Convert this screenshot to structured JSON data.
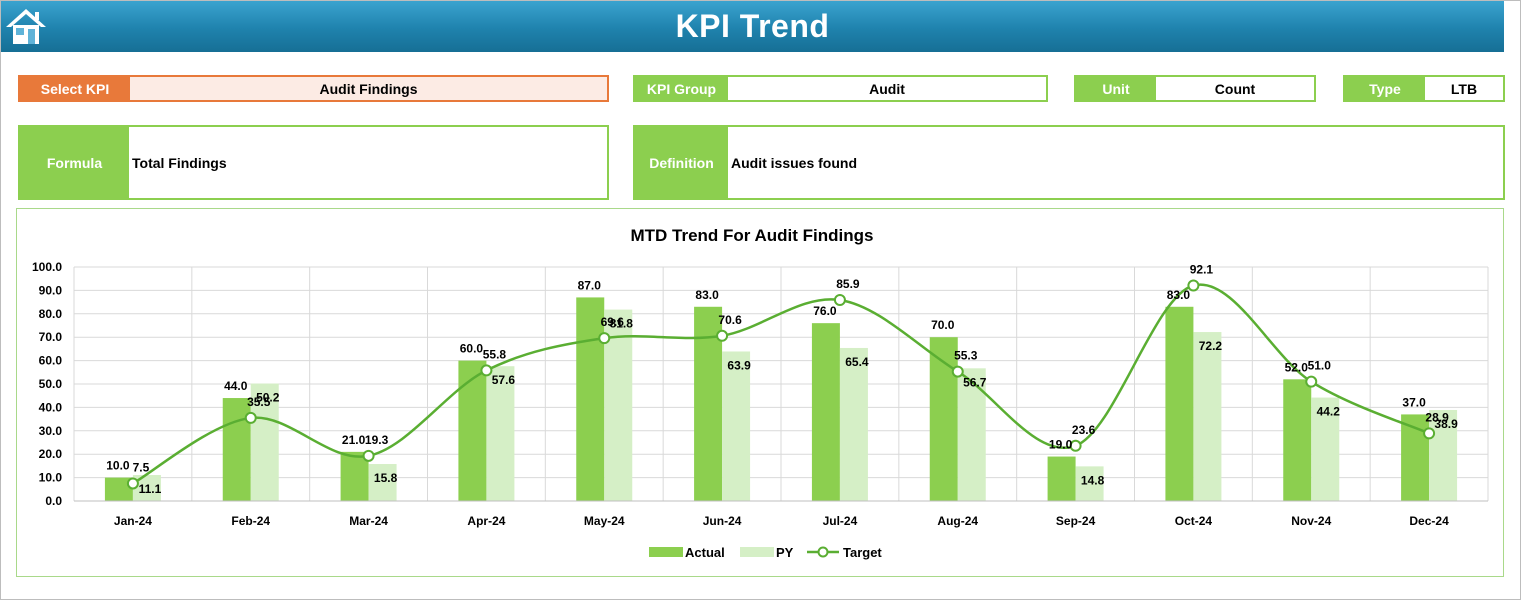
{
  "header": {
    "title": "KPI Trend",
    "home_icon": "home-icon"
  },
  "fields": {
    "select_kpi": {
      "label": "Select KPI",
      "value": "Audit Findings"
    },
    "kpi_group": {
      "label": "KPI Group",
      "value": "Audit"
    },
    "unit": {
      "label": "Unit",
      "value": "Count"
    },
    "type": {
      "label": "Type",
      "value": "LTB"
    },
    "formula": {
      "label": "Formula",
      "value": "Total Findings"
    },
    "definition": {
      "label": "Definition",
      "value": "Audit issues found"
    }
  },
  "colors": {
    "header": "#1f82ad",
    "accent_green": "#8ccf4f",
    "accent_orange": "#e8793a",
    "actual_bar": "#8ccf4f",
    "py_bar": "#d5efc6",
    "target_line": "#5aae32"
  },
  "chart_data": {
    "type": "bar",
    "title": "MTD Trend For Audit Findings",
    "categories": [
      "Jan-24",
      "Feb-24",
      "Mar-24",
      "Apr-24",
      "May-24",
      "Jun-24",
      "Jul-24",
      "Aug-24",
      "Sep-24",
      "Oct-24",
      "Nov-24",
      "Dec-24"
    ],
    "series": [
      {
        "name": "Actual",
        "type": "bar",
        "values": [
          10.0,
          44.0,
          21.0,
          60.0,
          87.0,
          83.0,
          76.0,
          70.0,
          19.0,
          83.0,
          52.0,
          37.0
        ]
      },
      {
        "name": "PY",
        "type": "bar",
        "values": [
          11.1,
          50.2,
          15.8,
          57.6,
          81.8,
          63.9,
          65.4,
          56.7,
          14.8,
          72.2,
          44.2,
          38.9
        ]
      },
      {
        "name": "Target",
        "type": "line",
        "smooth": true,
        "values": [
          7.5,
          35.5,
          19.3,
          55.8,
          69.6,
          70.6,
          85.9,
          55.3,
          23.6,
          92.1,
          51.0,
          28.9
        ]
      }
    ],
    "ylim": [
      0,
      100
    ],
    "yticks": [
      "0.0",
      "10.0",
      "20.0",
      "30.0",
      "40.0",
      "50.0",
      "60.0",
      "70.0",
      "80.0",
      "90.0",
      "100.0"
    ],
    "xlabel": "",
    "ylabel": "",
    "grid": true,
    "legend_position": "bottom"
  }
}
